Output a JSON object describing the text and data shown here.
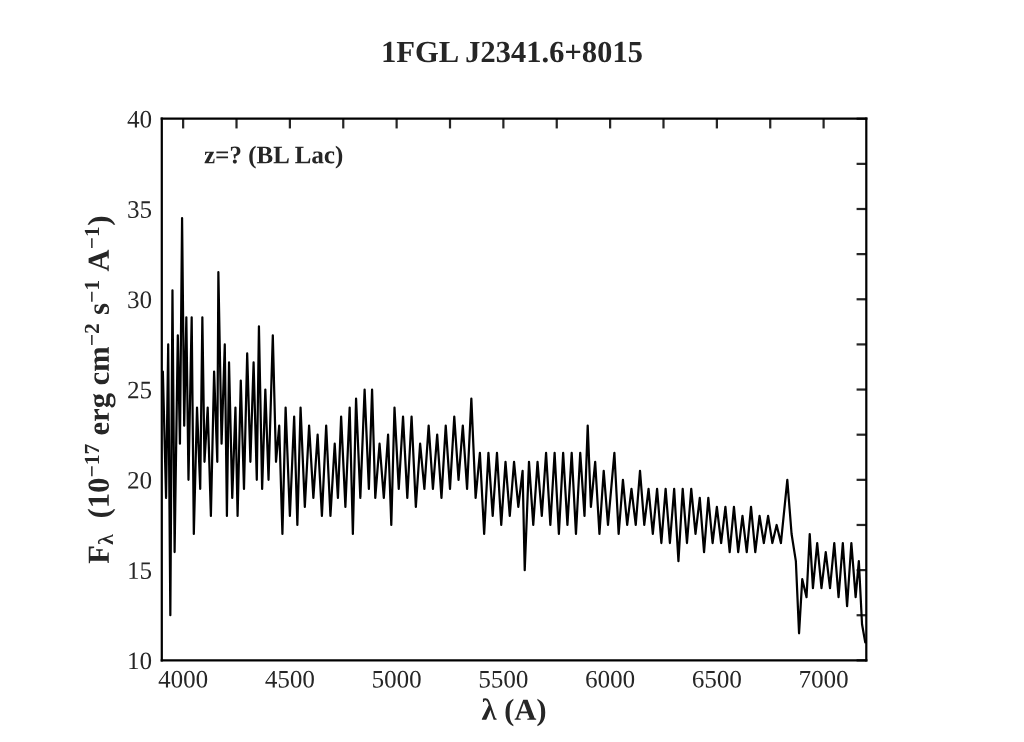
{
  "chart_data": {
    "type": "line",
    "title": "1FGL J2341.6+8015",
    "xlabel": "λ (A)",
    "ylabel": "F$_{λ}$  (10$^{−17}$ erg cm$^{−2}$ s$^{−1}$ A$^{−1}$)",
    "annotations": [
      "z=? (BL Lac)"
    ],
    "xlim": [
      3900,
      7200
    ],
    "ylim": [
      10,
      40
    ],
    "xticks": [
      4000,
      {
        "value": 4250,
        "label": null
      },
      4500,
      {
        "value": 4750,
        "label": null
      },
      5000,
      {
        "value": 5250,
        "label": null
      },
      5500,
      {
        "value": 5750,
        "label": null
      },
      6000,
      {
        "value": 6250,
        "label": null
      },
      6500,
      {
        "value": 6750,
        "label": null
      },
      7000
    ],
    "yticks": [
      10,
      {
        "value": 12.5,
        "label": null
      },
      15,
      {
        "value": 17.5,
        "label": null
      },
      20,
      {
        "value": 22.5,
        "label": null
      },
      25,
      {
        "value": 27.5,
        "label": null
      },
      30,
      {
        "value": 32.5,
        "label": null
      },
      35,
      {
        "value": 37.5,
        "label": null
      },
      40
    ],
    "marker": "none",
    "line_style": "solid",
    "series": [
      {
        "color": "#000000",
        "x": [
          3905,
          3920,
          3930,
          3940,
          3950,
          3960,
          3975,
          3985,
          3995,
          4005,
          4015,
          4025,
          4040,
          4050,
          4065,
          4080,
          4090,
          4100,
          4115,
          4130,
          4145,
          4160,
          4165,
          4180,
          4195,
          4205,
          4215,
          4230,
          4245,
          4255,
          4270,
          4285,
          4300,
          4315,
          4330,
          4345,
          4355,
          4370,
          4385,
          4400,
          4420,
          4435,
          4450,
          4465,
          4480,
          4500,
          4520,
          4535,
          4550,
          4570,
          4590,
          4610,
          4630,
          4650,
          4670,
          4690,
          4710,
          4725,
          4740,
          4760,
          4780,
          4795,
          4810,
          4830,
          4850,
          4870,
          4885,
          4900,
          4920,
          4940,
          4960,
          4975,
          4990,
          5010,
          5030,
          5050,
          5070,
          5090,
          5110,
          5130,
          5150,
          5170,
          5190,
          5210,
          5230,
          5250,
          5270,
          5290,
          5310,
          5330,
          5350,
          5370,
          5390,
          5410,
          5430,
          5450,
          5470,
          5490,
          5510,
          5530,
          5550,
          5570,
          5590,
          5600,
          5620,
          5640,
          5660,
          5680,
          5700,
          5720,
          5740,
          5760,
          5780,
          5800,
          5820,
          5840,
          5860,
          5880,
          5895,
          5910,
          5930,
          5950,
          5970,
          5990,
          6020,
          6040,
          6060,
          6080,
          6100,
          6120,
          6140,
          6160,
          6180,
          6200,
          6220,
          6240,
          6260,
          6280,
          6300,
          6320,
          6340,
          6360,
          6380,
          6400,
          6420,
          6440,
          6460,
          6480,
          6500,
          6520,
          6540,
          6560,
          6580,
          6600,
          6620,
          6640,
          6660,
          6680,
          6700,
          6720,
          6740,
          6760,
          6780,
          6800,
          6830,
          6850,
          6870,
          6885,
          6900,
          6920,
          6935,
          6950,
          6970,
          6990,
          7010,
          7030,
          7050,
          7070,
          7090,
          7110,
          7130,
          7150,
          7165,
          7180,
          7195
        ],
        "values": [
          26,
          19,
          27.5,
          12.5,
          30.5,
          16,
          28,
          22,
          34.5,
          23,
          29,
          20,
          29,
          17,
          24,
          19.5,
          29,
          21,
          24,
          18,
          26,
          21,
          31.5,
          22,
          27.5,
          18,
          26.5,
          19,
          24,
          18,
          25.5,
          19.5,
          27,
          21,
          26.5,
          20,
          28.5,
          19.5,
          25,
          20,
          28,
          21,
          23,
          17,
          24,
          18,
          23.5,
          17.5,
          24,
          18.5,
          23,
          19,
          22.5,
          18,
          23,
          18,
          22,
          19,
          23.5,
          18.5,
          24,
          17,
          24.5,
          19,
          25,
          19.5,
          25,
          19,
          22,
          19,
          22.5,
          17.5,
          24,
          19.5,
          23.5,
          19,
          23.5,
          18.5,
          22,
          19.5,
          23,
          19.5,
          22.5,
          19,
          23,
          19.5,
          23.5,
          20,
          23,
          19.5,
          24.5,
          19,
          21.5,
          17,
          21.5,
          18,
          21.5,
          17.5,
          21,
          18,
          21,
          18.5,
          20.5,
          15,
          21,
          17.5,
          21,
          18,
          21.5,
          17.5,
          21.5,
          17,
          21.5,
          17.5,
          21.5,
          17,
          21.5,
          18,
          23,
          18.5,
          21,
          17,
          20.5,
          17.5,
          21.5,
          17,
          20,
          17.5,
          19.5,
          17.5,
          20.5,
          17.5,
          19.5,
          17,
          19.5,
          16.5,
          19.5,
          16.5,
          19.5,
          15.5,
          19.5,
          16.5,
          19.5,
          17,
          19,
          16,
          19,
          16.5,
          18.5,
          16.5,
          18.5,
          16,
          18.5,
          16,
          18,
          16,
          18.5,
          16,
          18,
          16.5,
          18,
          16.5,
          17.5,
          16.5,
          20,
          17,
          15.5,
          11.5,
          14.5,
          13.5,
          17,
          14,
          16.5,
          14,
          16,
          14,
          16.5,
          13.5,
          16.5,
          13,
          16.5,
          13.5,
          15.5,
          12,
          11
        ]
      }
    ]
  }
}
